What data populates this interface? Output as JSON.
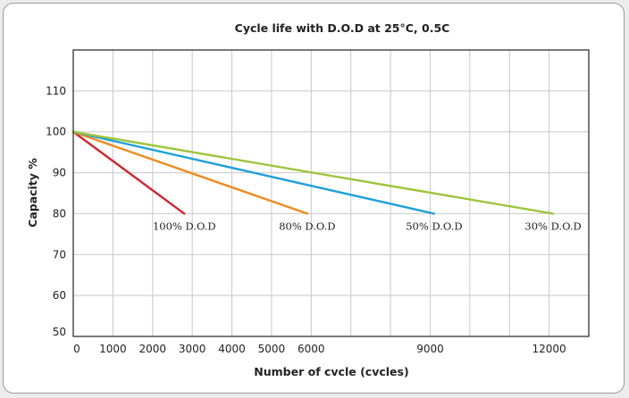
{
  "chart_data": {
    "type": "line",
    "title": "Cycle life with D.O.D at 25°C, 0.5C",
    "xlabel": "Number of cvcle (cvcles)",
    "ylabel": "Capacity %",
    "xlim": [
      0,
      13000
    ],
    "ylim": [
      50,
      120
    ],
    "x_ticks": [
      0,
      1000,
      2000,
      3000,
      4000,
      5000,
      6000,
      7000,
      8000,
      9000,
      10000,
      11000,
      12000
    ],
    "x_tick_labels": [
      "0",
      "1000",
      "2000",
      "3000",
      "4000",
      "5000",
      "6000",
      "",
      "",
      "9000",
      "",
      "",
      "12000"
    ],
    "y_ticks": [
      50,
      60,
      70,
      80,
      90,
      100,
      110
    ],
    "y_tick_labels": [
      "50",
      "60",
      "70",
      "80",
      "90",
      "100",
      "110"
    ],
    "grid": true,
    "series": [
      {
        "name": "100% D.O.D",
        "color": "#d0242b",
        "x": [
          0,
          2800
        ],
        "y": [
          100,
          80
        ]
      },
      {
        "name": "80% D.O.D",
        "color": "#f08a1e",
        "x": [
          0,
          5900
        ],
        "y": [
          100,
          80
        ]
      },
      {
        "name": "50% D.O.D",
        "color": "#1ea0dc",
        "x": [
          0,
          9100
        ],
        "y": [
          100,
          80
        ]
      },
      {
        "name": "30% D.O.D",
        "color": "#9dc53c",
        "x": [
          0,
          12100
        ],
        "y": [
          100,
          80
        ]
      }
    ]
  }
}
